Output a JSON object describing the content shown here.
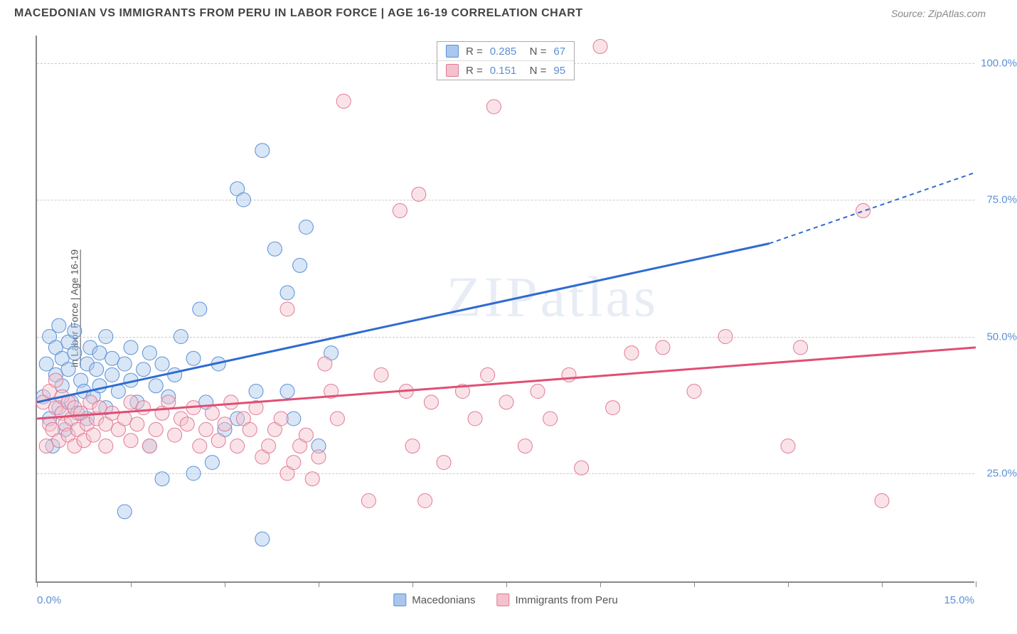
{
  "title": "MACEDONIAN VS IMMIGRANTS FROM PERU IN LABOR FORCE | AGE 16-19 CORRELATION CHART",
  "source": "Source: ZipAtlas.com",
  "watermark": "ZIPatlas",
  "yAxisTitle": "In Labor Force | Age 16-19",
  "chart": {
    "type": "scatter",
    "background_color": "#ffffff",
    "grid_color": "#cccccc",
    "axis_color": "#888888",
    "xlim": [
      0,
      15
    ],
    "ylim": [
      5,
      105
    ],
    "x_ticks": [
      0,
      1.5,
      3,
      4.5,
      6,
      7.5,
      9,
      10.5,
      12,
      13.5,
      15
    ],
    "x_tick_labels": {
      "start": "0.0%",
      "end": "15.0%"
    },
    "y_gridlines": [
      25,
      50,
      75,
      100
    ],
    "y_tick_labels": [
      "25.0%",
      "50.0%",
      "75.0%",
      "100.0%"
    ],
    "marker_radius": 10,
    "marker_opacity": 0.45,
    "label_fontsize": 15,
    "label_color": "#5b8fd6"
  },
  "series": [
    {
      "name": "Macedonians",
      "color_fill": "#a9c7ec",
      "color_stroke": "#5b8fd6",
      "line_color": "#2e6bd1",
      "R": "0.285",
      "N": "67",
      "trend": {
        "x1": 0,
        "y1": 38,
        "x2": 11.7,
        "y2": 67,
        "dash_x2": 15,
        "dash_y2": 80
      },
      "points": [
        [
          0.1,
          39
        ],
        [
          0.15,
          45
        ],
        [
          0.2,
          35
        ],
        [
          0.2,
          50
        ],
        [
          0.25,
          30
        ],
        [
          0.3,
          43
        ],
        [
          0.3,
          48
        ],
        [
          0.35,
          37
        ],
        [
          0.35,
          52
        ],
        [
          0.4,
          41
        ],
        [
          0.4,
          46
        ],
        [
          0.45,
          33
        ],
        [
          0.5,
          49
        ],
        [
          0.5,
          44
        ],
        [
          0.55,
          38
        ],
        [
          0.6,
          47
        ],
        [
          0.6,
          51
        ],
        [
          0.65,
          36
        ],
        [
          0.7,
          42
        ],
        [
          0.75,
          40
        ],
        [
          0.8,
          45
        ],
        [
          0.8,
          35
        ],
        [
          0.85,
          48
        ],
        [
          0.9,
          39
        ],
        [
          0.95,
          44
        ],
        [
          1.0,
          41
        ],
        [
          1.0,
          47
        ],
        [
          1.1,
          37
        ],
        [
          1.1,
          50
        ],
        [
          1.2,
          43
        ],
        [
          1.2,
          46
        ],
        [
          1.3,
          40
        ],
        [
          1.4,
          45
        ],
        [
          1.5,
          42
        ],
        [
          1.5,
          48
        ],
        [
          1.6,
          38
        ],
        [
          1.7,
          44
        ],
        [
          1.8,
          47
        ],
        [
          1.9,
          41
        ],
        [
          2.0,
          45
        ],
        [
          2.1,
          39
        ],
        [
          2.2,
          43
        ],
        [
          2.3,
          50
        ],
        [
          2.5,
          46
        ],
        [
          1.4,
          18
        ],
        [
          2.0,
          24
        ],
        [
          2.8,
          27
        ],
        [
          3.2,
          35
        ],
        [
          3.5,
          40
        ],
        [
          3.2,
          77
        ],
        [
          3.3,
          75
        ],
        [
          3.6,
          84
        ],
        [
          3.8,
          66
        ],
        [
          4.0,
          58
        ],
        [
          4.0,
          40
        ],
        [
          4.2,
          63
        ],
        [
          4.3,
          70
        ],
        [
          4.5,
          30
        ],
        [
          4.7,
          47
        ],
        [
          3.6,
          13
        ],
        [
          3.0,
          33
        ],
        [
          2.5,
          25
        ],
        [
          1.8,
          30
        ],
        [
          2.6,
          55
        ],
        [
          2.7,
          38
        ],
        [
          2.9,
          45
        ],
        [
          4.1,
          35
        ]
      ]
    },
    {
      "name": "Immigrants from Peru",
      "color_fill": "#f5c1cd",
      "color_stroke": "#e07a93",
      "line_color": "#e04f74",
      "R": "0.151",
      "N": "95",
      "trend": {
        "x1": 0,
        "y1": 35,
        "x2": 15,
        "y2": 48
      },
      "points": [
        [
          0.1,
          38
        ],
        [
          0.15,
          30
        ],
        [
          0.2,
          34
        ],
        [
          0.2,
          40
        ],
        [
          0.25,
          33
        ],
        [
          0.3,
          37
        ],
        [
          0.3,
          42
        ],
        [
          0.35,
          31
        ],
        [
          0.4,
          36
        ],
        [
          0.4,
          39
        ],
        [
          0.45,
          34
        ],
        [
          0.5,
          32
        ],
        [
          0.5,
          38
        ],
        [
          0.55,
          35
        ],
        [
          0.6,
          30
        ],
        [
          0.6,
          37
        ],
        [
          0.65,
          33
        ],
        [
          0.7,
          36
        ],
        [
          0.75,
          31
        ],
        [
          0.8,
          34
        ],
        [
          0.85,
          38
        ],
        [
          0.9,
          32
        ],
        [
          0.95,
          35
        ],
        [
          1.0,
          37
        ],
        [
          1.1,
          30
        ],
        [
          1.1,
          34
        ],
        [
          1.2,
          36
        ],
        [
          1.3,
          33
        ],
        [
          1.4,
          35
        ],
        [
          1.5,
          38
        ],
        [
          1.5,
          31
        ],
        [
          1.6,
          34
        ],
        [
          1.7,
          37
        ],
        [
          1.8,
          30
        ],
        [
          1.9,
          33
        ],
        [
          2.0,
          36
        ],
        [
          2.1,
          38
        ],
        [
          2.2,
          32
        ],
        [
          2.3,
          35
        ],
        [
          2.4,
          34
        ],
        [
          2.5,
          37
        ],
        [
          2.6,
          30
        ],
        [
          2.7,
          33
        ],
        [
          2.8,
          36
        ],
        [
          2.9,
          31
        ],
        [
          3.0,
          34
        ],
        [
          3.1,
          38
        ],
        [
          3.2,
          30
        ],
        [
          3.3,
          35
        ],
        [
          3.4,
          33
        ],
        [
          3.5,
          37
        ],
        [
          3.6,
          28
        ],
        [
          3.7,
          30
        ],
        [
          3.8,
          33
        ],
        [
          3.9,
          35
        ],
        [
          4.0,
          25
        ],
        [
          4.1,
          27
        ],
        [
          4.2,
          30
        ],
        [
          4.3,
          32
        ],
        [
          4.4,
          24
        ],
        [
          4.5,
          28
        ],
        [
          4.6,
          45
        ],
        [
          4.7,
          40
        ],
        [
          4.8,
          35
        ],
        [
          4.0,
          55
        ],
        [
          4.9,
          93
        ],
        [
          5.3,
          20
        ],
        [
          5.5,
          43
        ],
        [
          5.8,
          73
        ],
        [
          5.9,
          40
        ],
        [
          6.0,
          30
        ],
        [
          6.1,
          76
        ],
        [
          6.2,
          20
        ],
        [
          6.3,
          38
        ],
        [
          6.5,
          27
        ],
        [
          6.8,
          40
        ],
        [
          7.0,
          35
        ],
        [
          7.2,
          43
        ],
        [
          7.3,
          92
        ],
        [
          7.5,
          38
        ],
        [
          7.8,
          30
        ],
        [
          8.0,
          40
        ],
        [
          8.2,
          35
        ],
        [
          8.5,
          43
        ],
        [
          8.7,
          26
        ],
        [
          9.0,
          103
        ],
        [
          9.2,
          37
        ],
        [
          9.5,
          47
        ],
        [
          10.0,
          48
        ],
        [
          10.5,
          40
        ],
        [
          11.0,
          50
        ],
        [
          12.0,
          30
        ],
        [
          12.2,
          48
        ],
        [
          13.2,
          73
        ],
        [
          13.5,
          20
        ]
      ]
    }
  ],
  "bottomLegend": [
    "Macedonians",
    "Immigrants from Peru"
  ]
}
